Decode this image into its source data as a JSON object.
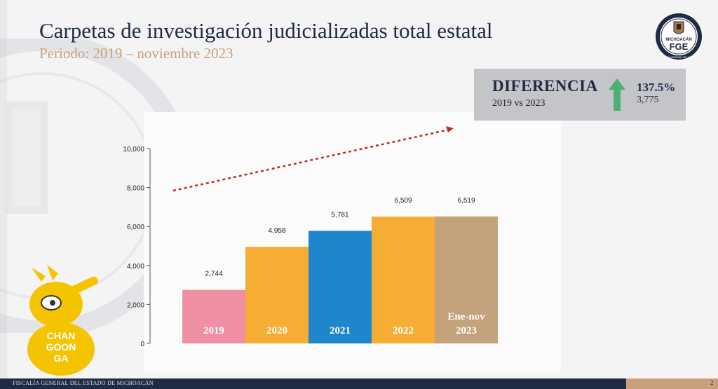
{
  "header": {
    "title": "Carpetas de investigación judicializadas total estatal",
    "subtitle": "Periodo: 2019 – noviembre 2023"
  },
  "logo": {
    "top_text": "FISCALÍA GENERAL DEL ESTADO",
    "state": "MICHOACÁN",
    "acronym": "FGE"
  },
  "difference": {
    "label": "DIFERENCIA",
    "comparison": "2019 vs 2023",
    "percent": "137.5%",
    "absolute": "3,775",
    "arrow_color": "#4caf73"
  },
  "chart_data": {
    "type": "bar",
    "categories": [
      "2019",
      "2020",
      "2021",
      "2022",
      "Ene-nov 2023"
    ],
    "category_labels": [
      [
        "2019"
      ],
      [
        "2020"
      ],
      [
        "2021"
      ],
      [
        "2022"
      ],
      [
        "Ene-nov",
        "2023"
      ]
    ],
    "values": [
      2744,
      4958,
      5781,
      6509,
      6519
    ],
    "value_labels": [
      "2,744",
      "4,958",
      "5,781",
      "6,509",
      "6,519"
    ],
    "colors": [
      "#ef8fa3",
      "#f6ad33",
      "#1e86cc",
      "#f6ad33",
      "#c3a27c"
    ],
    "ylim": [
      0,
      10000
    ],
    "yticks": [
      0,
      2000,
      4000,
      6000,
      8000,
      10000
    ],
    "ytick_labels": [
      "0",
      "2,000",
      "4,000",
      "6,000",
      "8,000",
      "10,000"
    ],
    "trend_arrow_color": "#c62828",
    "grid": false,
    "title": "",
    "xlabel": "",
    "ylabel": ""
  },
  "footer": {
    "org": "FISCALÍA GENERAL DEL ESTADO DE MICHOACÁN",
    "page": "2"
  },
  "mascot": {
    "text_lines": [
      "CHAN",
      "GOON",
      "GA"
    ]
  }
}
